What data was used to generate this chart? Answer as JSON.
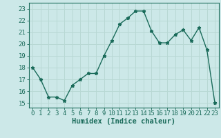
{
  "x": [
    0,
    1,
    2,
    3,
    4,
    5,
    6,
    7,
    8,
    9,
    10,
    11,
    12,
    13,
    14,
    15,
    16,
    17,
    18,
    19,
    20,
    21,
    22,
    23
  ],
  "y": [
    18.0,
    17.0,
    15.5,
    15.5,
    15.2,
    16.5,
    17.0,
    17.5,
    17.5,
    19.0,
    20.3,
    21.7,
    22.2,
    22.8,
    22.8,
    21.1,
    20.1,
    20.1,
    20.8,
    21.2,
    20.3,
    21.4,
    19.5,
    15.0
  ],
  "line_color": "#1a6b5a",
  "marker": "*",
  "bg_color": "#cce8e8",
  "grid_color": "#b8d8d4",
  "tick_color": "#1a6b5a",
  "xlabel": "Humidex (Indice chaleur)",
  "xlabel_fontsize": 7.5,
  "xlabel_color": "#1a6b5a",
  "ylabel_ticks": [
    15,
    16,
    17,
    18,
    19,
    20,
    21,
    22,
    23
  ],
  "xlim": [
    -0.5,
    23.5
  ],
  "ylim": [
    14.6,
    23.5
  ],
  "xtick_labels": [
    "0",
    "1",
    "2",
    "3",
    "4",
    "5",
    "6",
    "7",
    "8",
    "9",
    "10",
    "11",
    "12",
    "13",
    "14",
    "15",
    "16",
    "17",
    "18",
    "19",
    "20",
    "21",
    "22",
    "23"
  ],
  "tick_fontsize": 6.5,
  "line_width": 1.0,
  "marker_size": 3.5
}
